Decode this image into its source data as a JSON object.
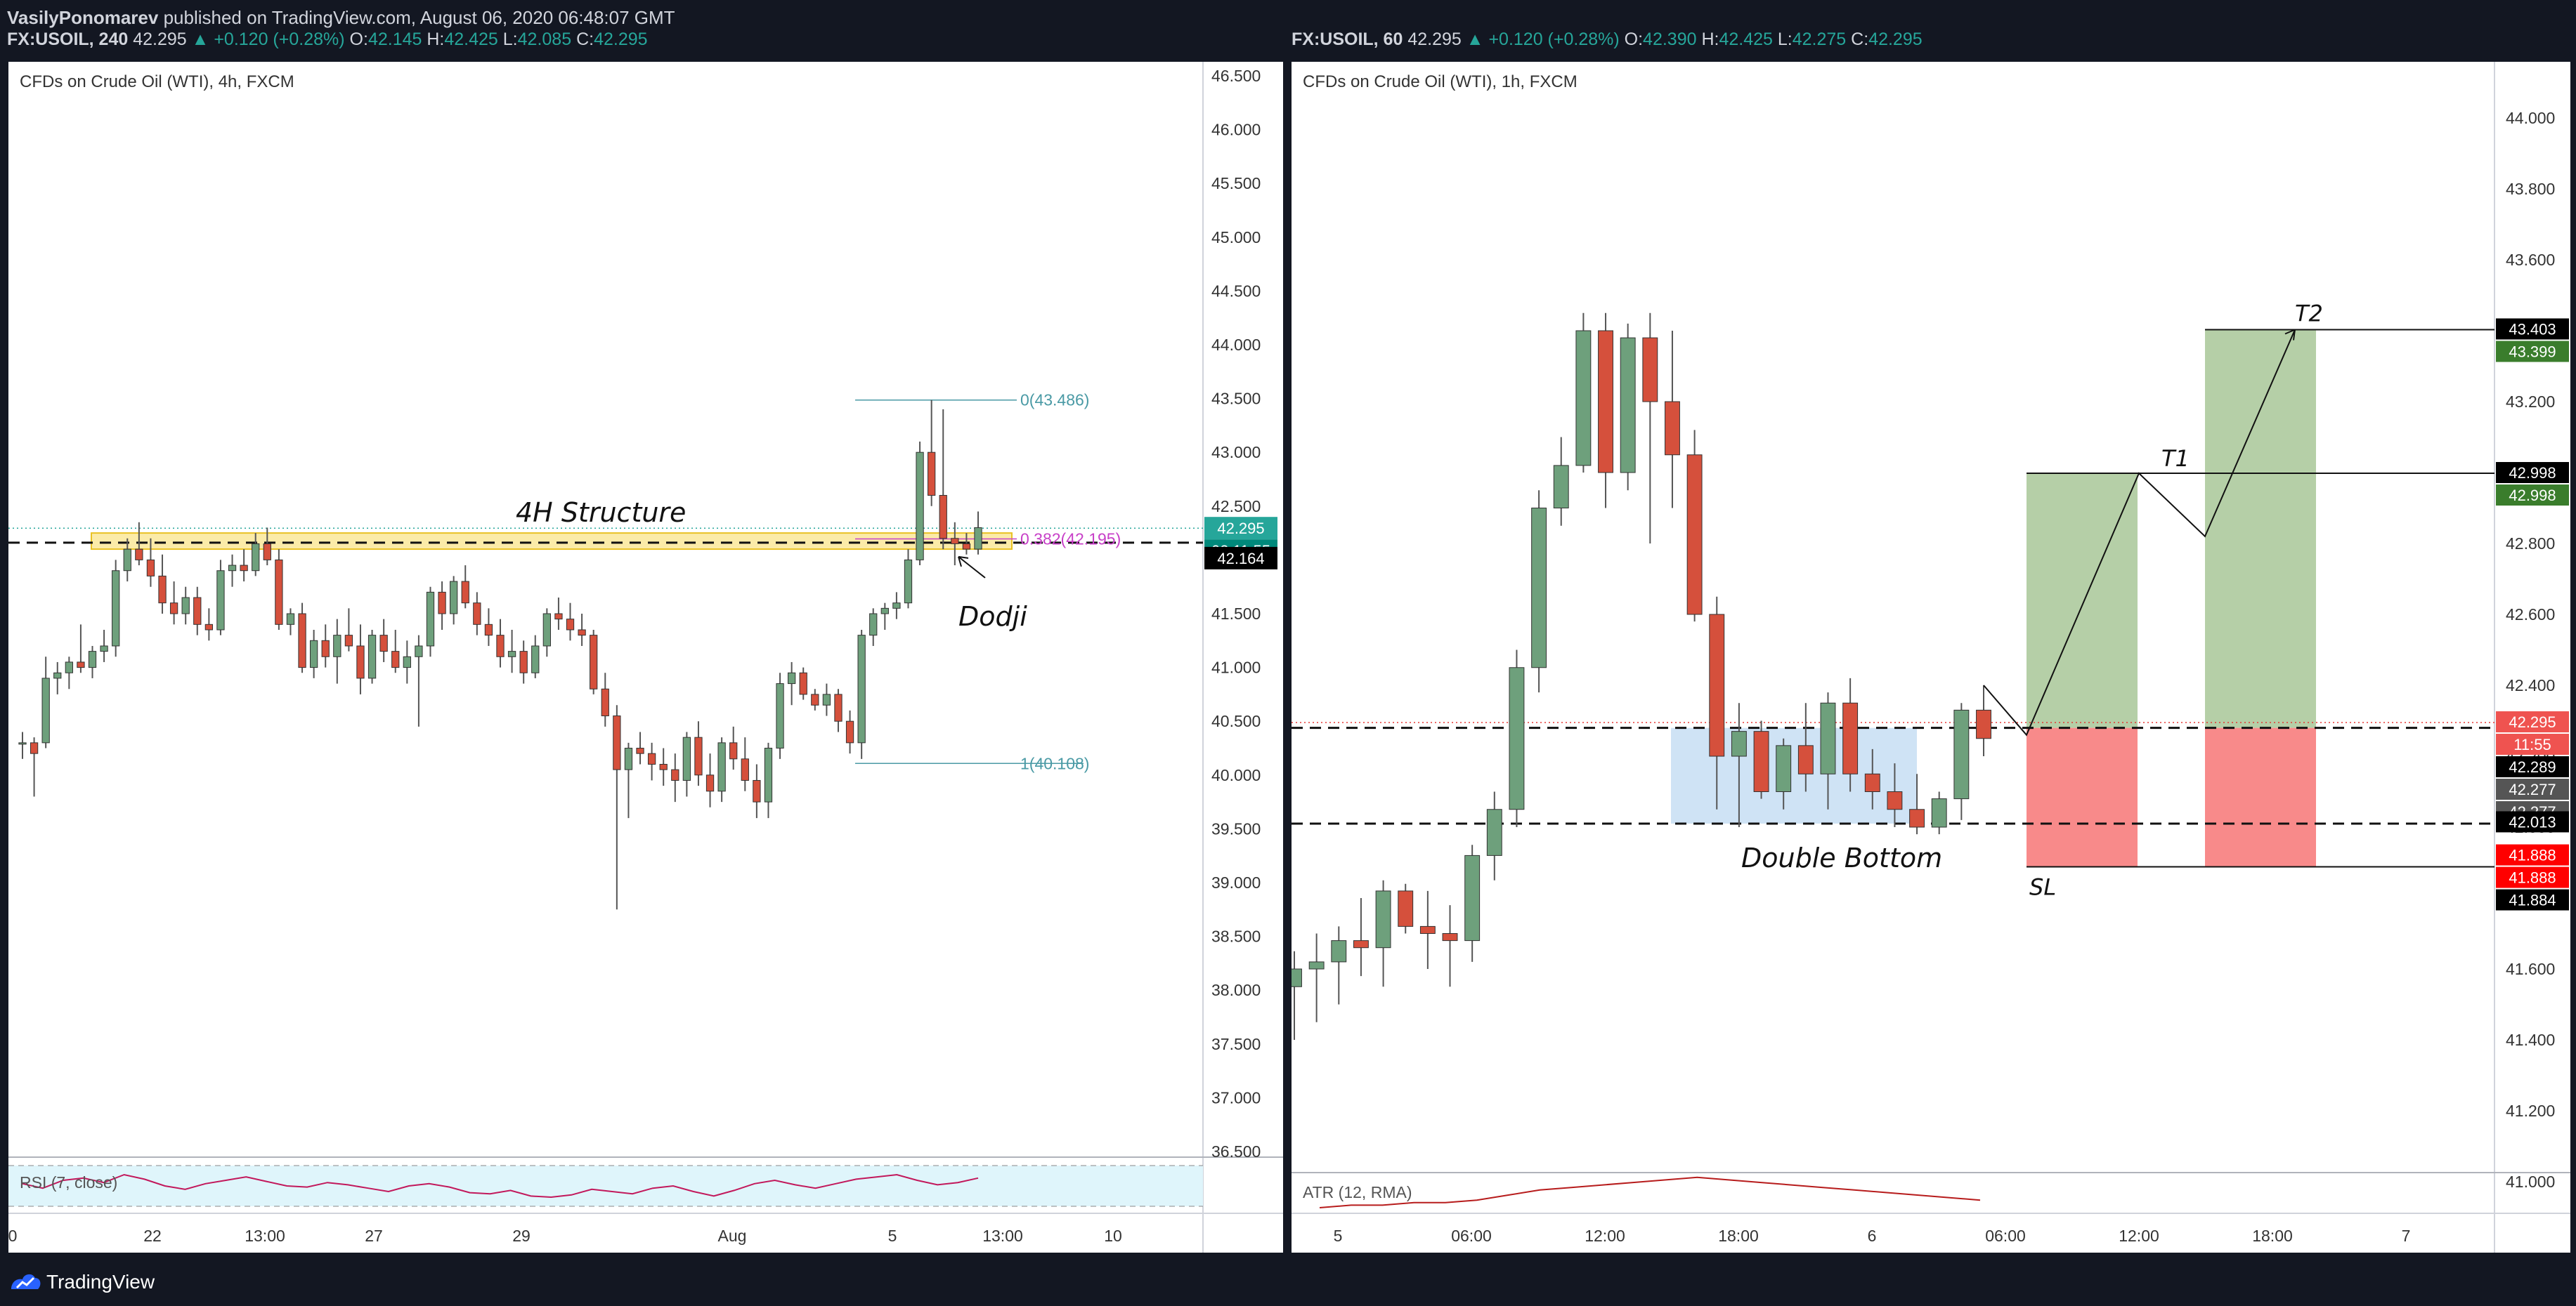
{
  "header": {
    "author": "VasilyPonomarev",
    "published": " published on TradingView.com, August 06, 2020 06:48:07 GMT",
    "left_ohlc": {
      "symbol": "FX:USOIL, 240",
      "last": "42.295",
      "change": "▲ +0.120 (+0.28%)",
      "o_label": "O:",
      "o": "42.145",
      "h_label": "H:",
      "h": "42.425",
      "l_label": "L:",
      "l": "42.085",
      "c_label": "C:",
      "c": "42.295"
    },
    "right_ohlc": {
      "symbol": "FX:USOIL, 60",
      "last": "42.295",
      "change": "▲ +0.120 (+0.28%)",
      "o_label": "O:",
      "o": "42.390",
      "h_label": "H:",
      "h": "42.425",
      "l_label": "L:",
      "l": "42.275",
      "c_label": "C:",
      "c": "42.295"
    }
  },
  "footer": {
    "brand": "TradingView"
  },
  "colors": {
    "up": "#6ea07c",
    "down": "#d5503c",
    "accent": "#26a69a",
    "fib_text": "#4a9aa5",
    "fib_level": "#c840c8",
    "bg": "#131722"
  },
  "chart_data": [
    {
      "type": "candlestick",
      "title": "CFDs on Crude Oil (WTI), 4h, FXCM",
      "y_ticks": [
        "46.500",
        "46.000",
        "45.500",
        "45.000",
        "44.500",
        "44.000",
        "43.500",
        "43.000",
        "42.500",
        "42.000",
        "41.500",
        "41.000",
        "40.500",
        "40.000",
        "39.500",
        "39.000",
        "38.500",
        "38.000",
        "37.500",
        "37.000",
        "36.500"
      ],
      "ylim": [
        36.5,
        46.5
      ],
      "x_ticks": [
        "0",
        "22",
        "13:00",
        "27",
        "29",
        "Aug",
        "5",
        "13:00",
        "10"
      ],
      "price_labels": [
        {
          "text": "42.295",
          "kind": "last"
        },
        {
          "text": "02:11:55",
          "kind": "timer"
        },
        {
          "text": "42.164",
          "kind": "level"
        }
      ],
      "annotations": {
        "structure": "4H Structure",
        "dodji": "Dodji",
        "fib_top": "0(43.486)",
        "fib_mid": "0.382(42.195)",
        "fib_bottom": "1(40.108)"
      },
      "levels": {
        "structure_low": 42.1,
        "structure_high": 42.25,
        "dashed": 42.16,
        "last": 42.295,
        "fib0": 43.486,
        "fib382": 42.195,
        "fib1": 40.108
      },
      "indicator": {
        "name": "RSI (7, close)"
      },
      "candles": [
        [
          40.3,
          40.4,
          40.15,
          40.3
        ],
        [
          40.3,
          40.35,
          39.8,
          40.2
        ],
        [
          40.3,
          41.1,
          40.25,
          40.9
        ],
        [
          40.9,
          41.05,
          40.75,
          40.95
        ],
        [
          40.95,
          41.1,
          40.8,
          41.05
        ],
        [
          41.05,
          41.4,
          40.95,
          41.0
        ],
        [
          41.0,
          41.2,
          40.9,
          41.15
        ],
        [
          41.15,
          41.35,
          41.05,
          41.2
        ],
        [
          41.2,
          42.0,
          41.1,
          41.9
        ],
        [
          41.9,
          42.2,
          41.8,
          42.1
        ],
        [
          42.1,
          42.35,
          41.95,
          42.0
        ],
        [
          42.0,
          42.2,
          41.75,
          41.85
        ],
        [
          41.85,
          42.05,
          41.5,
          41.6
        ],
        [
          41.6,
          41.8,
          41.4,
          41.5
        ],
        [
          41.5,
          41.75,
          41.4,
          41.65
        ],
        [
          41.65,
          41.75,
          41.3,
          41.4
        ],
        [
          41.4,
          41.55,
          41.25,
          41.35
        ],
        [
          41.35,
          42.0,
          41.3,
          41.9
        ],
        [
          41.9,
          42.05,
          41.75,
          41.95
        ],
        [
          41.95,
          42.1,
          41.8,
          41.9
        ],
        [
          41.9,
          42.25,
          41.85,
          42.15
        ],
        [
          42.15,
          42.3,
          41.95,
          42.0
        ],
        [
          42.0,
          42.1,
          41.35,
          41.4
        ],
        [
          41.4,
          41.55,
          41.3,
          41.5
        ],
        [
          41.5,
          41.6,
          40.95,
          41.0
        ],
        [
          41.0,
          41.35,
          40.9,
          41.25
        ],
        [
          41.25,
          41.4,
          41.0,
          41.1
        ],
        [
          41.1,
          41.45,
          40.85,
          41.3
        ],
        [
          41.3,
          41.55,
          41.15,
          41.2
        ],
        [
          41.2,
          41.4,
          40.75,
          40.9
        ],
        [
          40.9,
          41.35,
          40.85,
          41.3
        ],
        [
          41.3,
          41.45,
          41.05,
          41.15
        ],
        [
          41.15,
          41.35,
          40.95,
          41.0
        ],
        [
          41.0,
          41.25,
          40.85,
          41.1
        ],
        [
          41.1,
          41.3,
          40.45,
          41.2
        ],
        [
          41.2,
          41.75,
          41.1,
          41.7
        ],
        [
          41.7,
          41.8,
          41.35,
          41.5
        ],
        [
          41.5,
          41.85,
          41.4,
          41.8
        ],
        [
          41.8,
          41.95,
          41.55,
          41.6
        ],
        [
          41.6,
          41.7,
          41.3,
          41.4
        ],
        [
          41.4,
          41.55,
          41.2,
          41.3
        ],
        [
          41.3,
          41.45,
          41.0,
          41.1
        ],
        [
          41.1,
          41.35,
          40.95,
          41.15
        ],
        [
          41.15,
          41.25,
          40.85,
          40.95
        ],
        [
          40.95,
          41.3,
          40.9,
          41.2
        ],
        [
          41.2,
          41.55,
          41.1,
          41.5
        ],
        [
          41.5,
          41.65,
          41.35,
          41.45
        ],
        [
          41.45,
          41.6,
          41.25,
          41.35
        ],
        [
          41.35,
          41.5,
          41.2,
          41.3
        ],
        [
          41.3,
          41.35,
          40.75,
          40.8
        ],
        [
          40.8,
          40.95,
          40.45,
          40.55
        ],
        [
          40.55,
          40.65,
          38.75,
          40.05
        ],
        [
          40.05,
          40.3,
          39.6,
          40.25
        ],
        [
          40.25,
          40.4,
          40.1,
          40.2
        ],
        [
          40.2,
          40.3,
          39.95,
          40.1
        ],
        [
          40.1,
          40.25,
          39.9,
          40.05
        ],
        [
          40.05,
          40.2,
          39.75,
          39.95
        ],
        [
          39.95,
          40.4,
          39.8,
          40.35
        ],
        [
          40.35,
          40.5,
          39.9,
          40.0
        ],
        [
          40.0,
          40.2,
          39.7,
          39.85
        ],
        [
          39.85,
          40.35,
          39.75,
          40.3
        ],
        [
          40.3,
          40.45,
          40.05,
          40.15
        ],
        [
          40.15,
          40.35,
          39.85,
          39.95
        ],
        [
          39.95,
          40.1,
          39.6,
          39.75
        ],
        [
          39.75,
          40.3,
          39.6,
          40.25
        ],
        [
          40.25,
          40.95,
          40.15,
          40.85
        ],
        [
          40.85,
          41.05,
          40.65,
          40.95
        ],
        [
          40.95,
          41.0,
          40.7,
          40.75
        ],
        [
          40.75,
          40.8,
          40.6,
          40.65
        ],
        [
          40.65,
          40.85,
          40.55,
          40.75
        ],
        [
          40.75,
          40.8,
          40.4,
          40.5
        ],
        [
          40.5,
          40.6,
          40.2,
          40.3
        ],
        [
          40.3,
          41.35,
          40.15,
          41.3
        ],
        [
          41.3,
          41.55,
          41.2,
          41.5
        ],
        [
          41.5,
          41.6,
          41.35,
          41.55
        ],
        [
          41.55,
          41.7,
          41.45,
          41.6
        ],
        [
          41.6,
          42.1,
          41.55,
          42.0
        ],
        [
          42.0,
          43.1,
          41.95,
          43.0
        ],
        [
          43.0,
          43.486,
          42.5,
          42.6
        ],
        [
          42.6,
          43.4,
          42.1,
          42.2
        ],
        [
          42.2,
          42.35,
          41.95,
          42.15
        ],
        [
          42.15,
          42.25,
          42.05,
          42.1
        ],
        [
          42.1,
          42.45,
          42.05,
          42.3
        ]
      ],
      "rsi": [
        52,
        48,
        55,
        57,
        53,
        60,
        56,
        50,
        47,
        52,
        55,
        58,
        54,
        50,
        49,
        53,
        51,
        48,
        45,
        50,
        52,
        49,
        44,
        43,
        46,
        41,
        40,
        42,
        47,
        45,
        43,
        48,
        50,
        45,
        41,
        46,
        52,
        55,
        51,
        48,
        52,
        56,
        58,
        60,
        55,
        51,
        53,
        57
      ]
    },
    {
      "type": "candlestick",
      "title": "CFDs on Crude Oil (WTI), 1h, FXCM",
      "y_ticks": [
        "44.000",
        "43.800",
        "43.600",
        "43.400",
        "43.200",
        "43.000",
        "42.800",
        "42.600",
        "42.400",
        "42.200",
        "42.000",
        "41.800",
        "41.600",
        "41.400",
        "41.200",
        "41.000"
      ],
      "ylim": [
        41.0,
        44.0
      ],
      "x_ticks": [
        "5",
        "06:00",
        "12:00",
        "18:00",
        "6",
        "06:00",
        "12:00",
        "18:00",
        "7"
      ],
      "price_labels": [
        {
          "text": "43.403",
          "kind": "black"
        },
        {
          "text": "43.399",
          "kind": "green"
        },
        {
          "text": "42.998",
          "kind": "black"
        },
        {
          "text": "42.998",
          "kind": "green"
        },
        {
          "text": "42.295",
          "kind": "red"
        },
        {
          "text": "11:55",
          "kind": "red"
        },
        {
          "text": "42.289",
          "kind": "black"
        },
        {
          "text": "42.277",
          "kind": "gray"
        },
        {
          "text": "42.277",
          "kind": "gray"
        },
        {
          "text": "42.013",
          "kind": "black"
        },
        {
          "text": "41.888",
          "kind": "brightred"
        },
        {
          "text": "41.888",
          "kind": "brightred"
        },
        {
          "text": "41.884",
          "kind": "black"
        }
      ],
      "annotations": {
        "pattern": "Double Bottom",
        "t1": "T1",
        "t2": "T2",
        "sl": "SL"
      },
      "levels": {
        "upper_dashed": 42.28,
        "lower_dashed": 42.01,
        "t1": 42.998,
        "t2": 43.403,
        "sl": 41.888,
        "last": 42.295
      },
      "indicator": {
        "name": "ATR (12, RMA)"
      },
      "candles": [
        [
          41.55,
          41.65,
          41.4,
          41.6
        ],
        [
          41.6,
          41.7,
          41.45,
          41.62
        ],
        [
          41.62,
          41.72,
          41.5,
          41.68
        ],
        [
          41.68,
          41.8,
          41.58,
          41.66
        ],
        [
          41.66,
          41.85,
          41.55,
          41.82
        ],
        [
          41.82,
          41.84,
          41.7,
          41.72
        ],
        [
          41.72,
          41.82,
          41.6,
          41.7
        ],
        [
          41.7,
          41.78,
          41.55,
          41.68
        ],
        [
          41.68,
          41.95,
          41.62,
          41.92
        ],
        [
          41.92,
          42.1,
          41.85,
          42.05
        ],
        [
          42.05,
          42.5,
          42.0,
          42.45
        ],
        [
          42.45,
          42.95,
          42.38,
          42.9
        ],
        [
          42.9,
          43.1,
          42.85,
          43.02
        ],
        [
          43.02,
          43.45,
          43.0,
          43.4
        ],
        [
          43.4,
          43.45,
          42.9,
          43.0
        ],
        [
          43.0,
          43.42,
          42.95,
          43.38
        ],
        [
          43.38,
          43.45,
          42.8,
          43.2
        ],
        [
          43.2,
          43.4,
          42.9,
          43.05
        ],
        [
          43.05,
          43.12,
          42.58,
          42.6
        ],
        [
          42.6,
          42.65,
          42.05,
          42.2
        ],
        [
          42.2,
          42.35,
          42.0,
          42.27
        ],
        [
          42.27,
          42.3,
          42.08,
          42.1
        ],
        [
          42.1,
          42.25,
          42.05,
          42.23
        ],
        [
          42.23,
          42.35,
          42.1,
          42.15
        ],
        [
          42.15,
          42.38,
          42.05,
          42.35
        ],
        [
          42.35,
          42.42,
          42.1,
          42.15
        ],
        [
          42.15,
          42.22,
          42.05,
          42.1
        ],
        [
          42.1,
          42.18,
          42.0,
          42.05
        ],
        [
          42.05,
          42.15,
          41.98,
          42.0
        ],
        [
          42.0,
          42.1,
          41.98,
          42.08
        ],
        [
          42.08,
          42.35,
          42.02,
          42.33
        ],
        [
          42.33,
          42.4,
          42.2,
          42.25
        ]
      ],
      "atr": [
        0.1,
        0.11,
        0.11,
        0.12,
        0.12,
        0.13,
        0.15,
        0.17,
        0.18,
        0.19,
        0.2,
        0.21,
        0.22,
        0.21,
        0.2,
        0.19,
        0.18,
        0.17,
        0.16,
        0.15,
        0.14,
        0.13
      ]
    }
  ]
}
